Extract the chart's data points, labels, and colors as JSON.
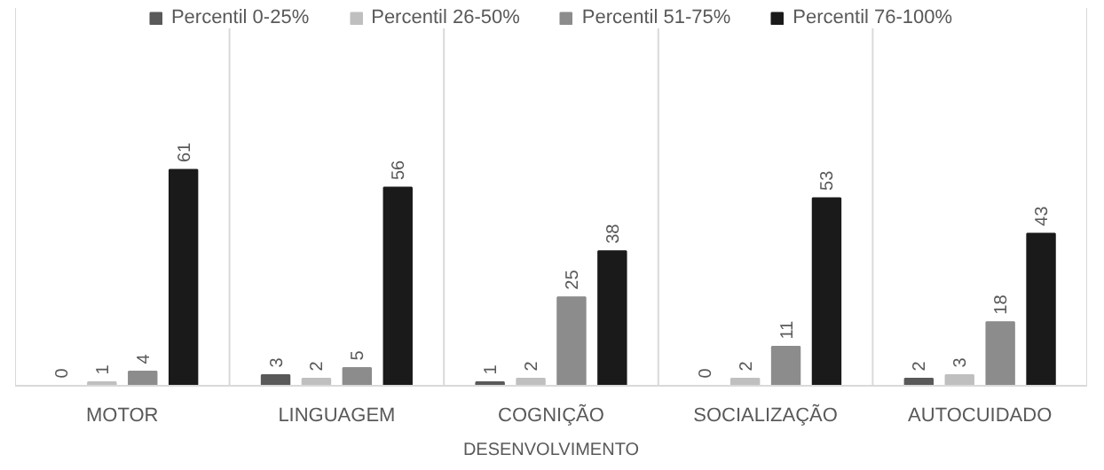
{
  "chart_data": {
    "type": "bar",
    "xlabel": "DESENVOLVIMENTO",
    "categories": [
      "MOTOR",
      "LINGUAGEM",
      "COGNIÇÃO",
      "SOCIALIZAÇÃO",
      "AUTOCUIDADO"
    ],
    "series": [
      {
        "name": "Percentil 0-25%",
        "color": "#595959",
        "values": [
          0,
          3,
          1,
          0,
          2
        ]
      },
      {
        "name": "Percentil 26-50%",
        "color": "#bfbfbf",
        "values": [
          1,
          2,
          2,
          2,
          3
        ]
      },
      {
        "name": "Percentil 51-75%",
        "color": "#8c8c8c",
        "values": [
          4,
          5,
          25,
          11,
          18
        ]
      },
      {
        "name": "Percentil 76-100%",
        "color": "#1a1a1a",
        "values": [
          61,
          56,
          38,
          53,
          43
        ]
      }
    ],
    "data_labels": true,
    "legend": "top"
  }
}
